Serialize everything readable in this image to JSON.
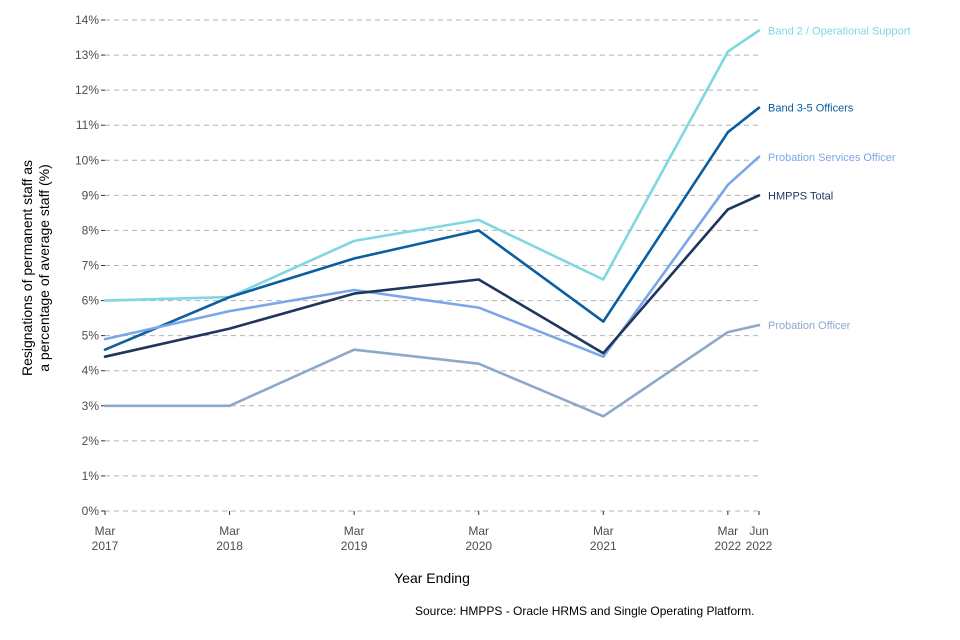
{
  "chart_data": {
    "type": "line",
    "title": "",
    "xlabel": "Year Ending",
    "ylabel_lines": [
      "Resignations of permanent staff as",
      "a percentage of average staff (%)"
    ],
    "ylim": [
      0,
      14
    ],
    "y_ticks": [
      "0%",
      "1%",
      "2%",
      "3%",
      "4%",
      "5%",
      "6%",
      "7%",
      "8%",
      "9%",
      "10%",
      "11%",
      "12%",
      "13%",
      "14%"
    ],
    "x_points": [
      2017,
      2018,
      2019,
      2020,
      2021,
      2022,
      2022.25
    ],
    "x_ticks": [
      {
        "line1": "Mar",
        "line2": "2017"
      },
      {
        "line1": "Mar",
        "line2": "2018"
      },
      {
        "line1": "Mar",
        "line2": "2019"
      },
      {
        "line1": "Mar",
        "line2": "2020"
      },
      {
        "line1": "Mar",
        "line2": "2021"
      },
      {
        "line1": "Mar",
        "line2": "2022"
      },
      {
        "line1": "Jun",
        "line2": "2022"
      }
    ],
    "grid": true,
    "series": [
      {
        "name": "Band 2 / Operational Support",
        "color": "#7fd8e0",
        "values": [
          6.0,
          6.1,
          7.7,
          8.3,
          6.6,
          13.1,
          13.7
        ]
      },
      {
        "name": "Band 3-5 Officers",
        "color": "#0b5ea0",
        "values": [
          4.6,
          6.1,
          7.2,
          8.0,
          5.4,
          10.8,
          11.5
        ]
      },
      {
        "name": "Probation Services Officer",
        "color": "#7aa6ea",
        "values": [
          4.9,
          5.7,
          6.3,
          5.8,
          4.4,
          9.3,
          10.1
        ]
      },
      {
        "name": "HMPPS Total",
        "color": "#1f355e",
        "values": [
          4.4,
          5.2,
          6.2,
          6.6,
          4.5,
          8.6,
          9.0
        ]
      },
      {
        "name": "Probation Officer",
        "color": "#8ea8c9",
        "values": [
          3.0,
          3.0,
          4.6,
          4.2,
          2.7,
          5.1,
          5.3
        ]
      }
    ],
    "source": "Source: HMPPS - Oracle HRMS and Single Operating Platform."
  }
}
